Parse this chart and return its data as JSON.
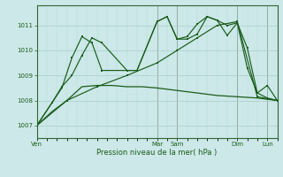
{
  "bg_color": "#cce8e8",
  "grid_color_major": "#aacccc",
  "grid_color_minor": "#bbdddd",
  "line_color": "#1a5c1a",
  "xlabel": "Pression niveau de la mer( hPa )",
  "ylim": [
    1006.5,
    1011.8
  ],
  "yticks": [
    1007,
    1008,
    1009,
    1010,
    1011
  ],
  "xlim": [
    0,
    48
  ],
  "day_positions": [
    0,
    24,
    28,
    40,
    46
  ],
  "day_labels": [
    "Ven",
    "Mar",
    "Sam",
    "Dim",
    "Lun"
  ],
  "vlines": [
    0,
    24,
    28,
    40,
    46
  ],
  "line_jagged1_x": [
    0,
    3,
    5,
    7,
    9,
    11,
    13,
    18,
    20,
    24,
    26,
    28,
    30,
    32,
    34,
    36,
    38,
    40,
    42,
    44,
    46,
    48
  ],
  "line_jagged1_y": [
    1007.0,
    1007.9,
    1008.55,
    1009.0,
    1009.8,
    1010.5,
    1010.3,
    1009.2,
    1009.2,
    1011.15,
    1011.35,
    1010.45,
    1010.45,
    1010.65,
    1011.35,
    1011.2,
    1011.0,
    1011.1,
    1010.1,
    1008.3,
    1008.1,
    1008.0
  ],
  "line_jagged2_x": [
    0,
    3,
    5,
    7,
    9,
    11,
    13,
    18,
    20,
    24,
    26,
    28,
    30,
    32,
    34,
    36,
    38,
    40,
    42,
    44,
    46,
    48
  ],
  "line_jagged2_y": [
    1007.0,
    1007.9,
    1008.5,
    1009.7,
    1010.55,
    1010.3,
    1009.2,
    1009.2,
    1009.2,
    1011.15,
    1011.35,
    1010.45,
    1010.55,
    1011.05,
    1011.35,
    1011.2,
    1010.6,
    1011.1,
    1009.3,
    1008.3,
    1008.6,
    1008.0
  ],
  "line_trend_x": [
    0,
    6,
    12,
    18,
    24,
    28,
    32,
    36,
    40,
    44,
    48
  ],
  "line_trend_y": [
    1007.0,
    1008.0,
    1008.55,
    1009.0,
    1009.5,
    1010.0,
    1010.5,
    1011.0,
    1011.15,
    1008.15,
    1008.0
  ],
  "line_flat_x": [
    0,
    3,
    6,
    9,
    12,
    15,
    18,
    21,
    24,
    28,
    32,
    36,
    40,
    44,
    48
  ],
  "line_flat_y": [
    1007.0,
    1007.55,
    1008.0,
    1008.55,
    1008.6,
    1008.6,
    1008.55,
    1008.55,
    1008.5,
    1008.4,
    1008.3,
    1008.2,
    1008.15,
    1008.1,
    1008.0
  ]
}
